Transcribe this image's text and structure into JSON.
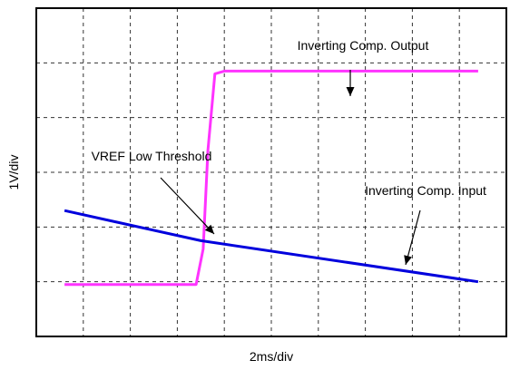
{
  "chart_data": {
    "type": "line",
    "xlabel": "2ms/div",
    "ylabel": "1V/div",
    "xlim": [
      0,
      10
    ],
    "ylim": [
      0,
      6
    ],
    "grid": true,
    "series": [
      {
        "name": "Inverting Comp. Output",
        "color": "#ff33ff",
        "x": [
          0.6,
          1.0,
          2.0,
          3.0,
          3.4,
          3.55,
          3.65,
          3.8,
          4.0,
          5.0,
          6.0,
          7.0,
          8.0,
          9.0,
          9.4
        ],
        "y": [
          0.95,
          0.95,
          0.95,
          0.95,
          0.95,
          1.6,
          3.4,
          4.8,
          4.85,
          4.85,
          4.85,
          4.85,
          4.85,
          4.85,
          4.85
        ]
      },
      {
        "name": "Inverting Comp. Input",
        "color": "#0000dd",
        "x": [
          0.6,
          3.5,
          9.4
        ],
        "y": [
          2.3,
          1.75,
          1.0
        ]
      }
    ],
    "annotations": [
      {
        "text": "Inverting Comp. Output",
        "target": [
          6.1,
          4.85
        ]
      },
      {
        "text": "VREF Low Threshold",
        "target": [
          3.1,
          1.85
        ]
      },
      {
        "text": "Inverting Comp. Input",
        "target": [
          7.8,
          1.2
        ]
      }
    ]
  }
}
